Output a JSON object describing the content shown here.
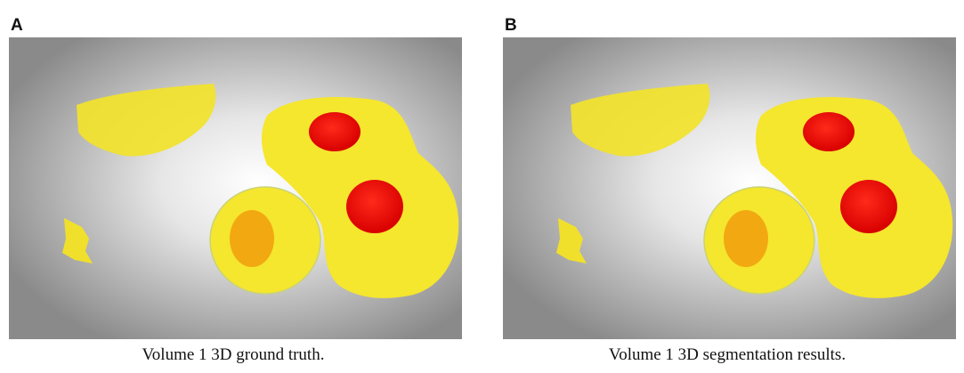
{
  "panels": [
    {
      "label": "A",
      "caption": "Volume 1 3D ground truth."
    },
    {
      "label": "B",
      "caption": "Volume 1 3D segmentation results."
    }
  ]
}
